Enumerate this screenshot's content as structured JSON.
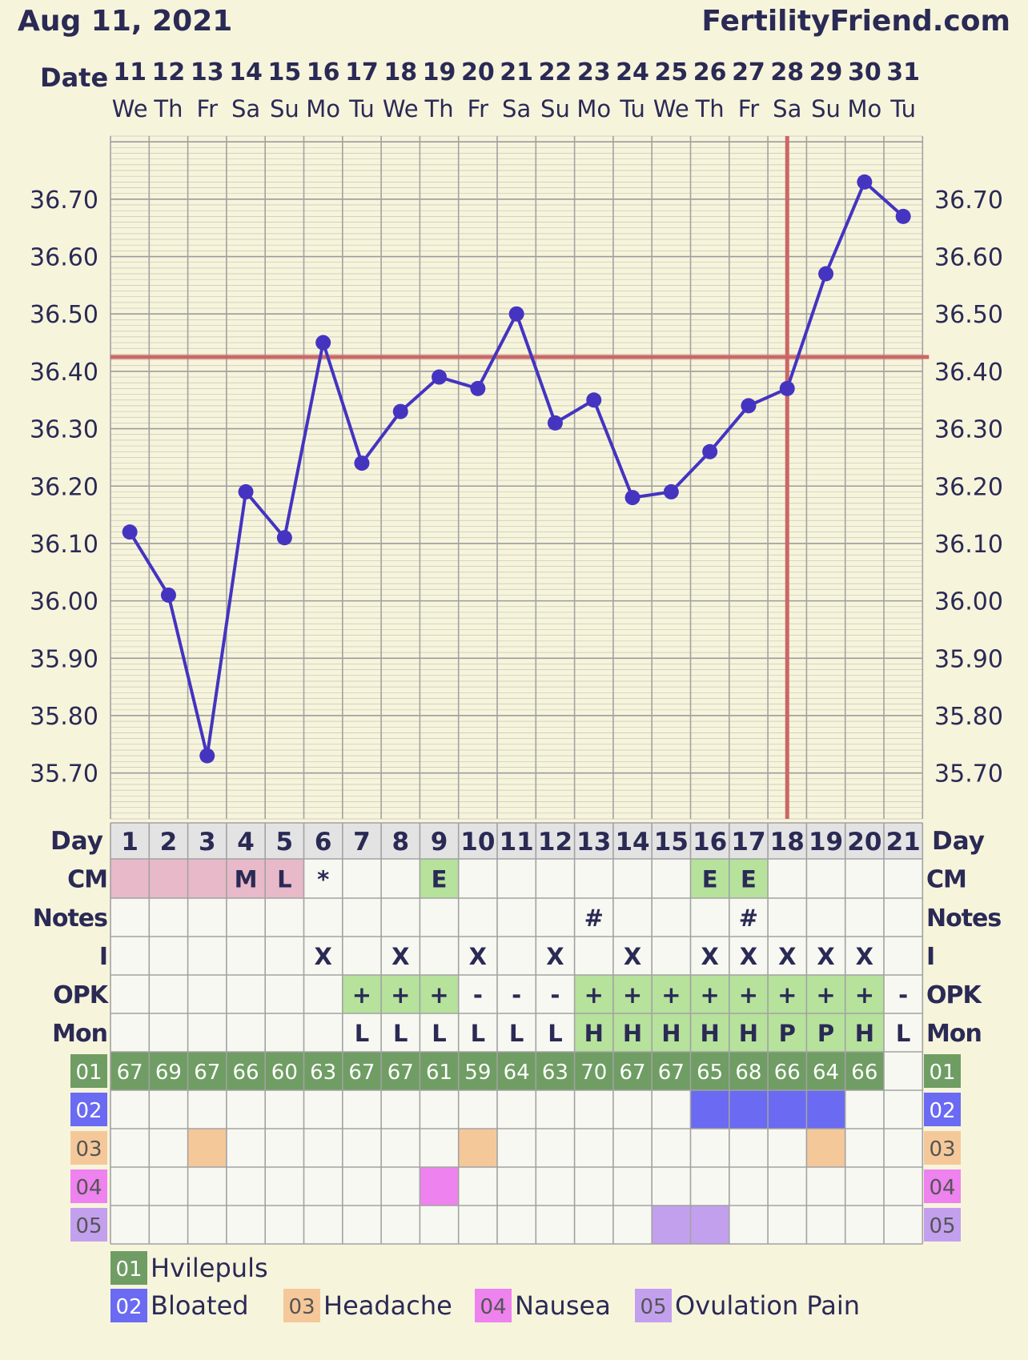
{
  "header": {
    "date": "Aug 11, 2021",
    "site": "FertilityFriend.com",
    "date_label": "Date"
  },
  "colors": {
    "background": "#f7f4dc",
    "grid": "#999999",
    "line": "#4434c0",
    "coverline": "#cc6666",
    "cell_fill": "#f8f8f2",
    "day_cell": "#e3e3e3",
    "menstruation": "#e8b9c8",
    "green_light": "#b6e29c",
    "green_dark": "#6f9d63",
    "bloated": "#6a6af2",
    "headache": "#f5c89a",
    "nausea": "#ee82ee",
    "ovulation_pain": "#c3a0ee"
  },
  "chart_data": {
    "type": "line",
    "dates": [
      "11",
      "12",
      "13",
      "14",
      "15",
      "16",
      "17",
      "18",
      "19",
      "20",
      "21",
      "22",
      "23",
      "24",
      "25",
      "26",
      "27",
      "28",
      "29",
      "30",
      "31"
    ],
    "weekdays": [
      "We",
      "Th",
      "Fr",
      "Sa",
      "Su",
      "Mo",
      "Tu",
      "We",
      "Th",
      "Fr",
      "Sa",
      "Su",
      "Mo",
      "Tu",
      "We",
      "Th",
      "Fr",
      "Sa",
      "Su",
      "Mo",
      "Tu"
    ],
    "cycle_days": [
      "1",
      "2",
      "3",
      "4",
      "5",
      "6",
      "7",
      "8",
      "9",
      "10",
      "11",
      "12",
      "13",
      "14",
      "15",
      "16",
      "17",
      "18",
      "19",
      "20",
      "21"
    ],
    "temperatures": [
      36.12,
      36.01,
      35.73,
      36.19,
      36.11,
      36.45,
      36.24,
      36.33,
      36.39,
      36.37,
      36.5,
      36.31,
      36.35,
      36.18,
      36.19,
      36.26,
      36.34,
      36.37,
      36.57,
      36.73,
      36.67
    ],
    "y_tick_labels": [
      "36.70",
      "36.60",
      "36.50",
      "36.40",
      "36.30",
      "36.20",
      "36.10",
      "36.00",
      "35.90",
      "35.80",
      "35.70"
    ],
    "y_ticks": [
      36.7,
      36.6,
      36.5,
      36.4,
      36.3,
      36.2,
      36.1,
      36.0,
      35.9,
      35.8,
      35.7
    ],
    "ylim": [
      35.62,
      36.81
    ],
    "coverline": 36.425,
    "ovulation_day_index": 17,
    "grid": true
  },
  "rows": {
    "day_label": "Day",
    "cm": {
      "label": "CM",
      "values": [
        "",
        "",
        "",
        "M",
        "L",
        "*",
        "",
        "",
        "E",
        "",
        "",
        "",
        "",
        "",
        "",
        "E",
        "E",
        "",
        "",
        "",
        ""
      ],
      "fills": [
        "menstruation",
        "menstruation",
        "menstruation",
        "menstruation",
        "menstruation",
        "",
        "",
        "",
        "green_light",
        "",
        "",
        "",
        "",
        "",
        "",
        "green_light",
        "green_light",
        "",
        "",
        "",
        ""
      ]
    },
    "notes": {
      "label": "Notes",
      "values": [
        "",
        "",
        "",
        "",
        "",
        "",
        "",
        "",
        "",
        "",
        "",
        "",
        "#",
        "",
        "",
        "",
        "#",
        "",
        "",
        "",
        ""
      ]
    },
    "intercourse": {
      "label": "I",
      "values": [
        "",
        "",
        "",
        "",
        "",
        "X",
        "",
        "X",
        "",
        "X",
        "",
        "X",
        "",
        "X",
        "",
        "X",
        "X",
        "X",
        "X",
        "X",
        ""
      ]
    },
    "opk": {
      "label": "OPK",
      "values": [
        "",
        "",
        "",
        "",
        "",
        "",
        "+",
        "+",
        "+",
        "-",
        "-",
        "-",
        "+",
        "+",
        "+",
        "+",
        "+",
        "+",
        "+",
        "+",
        "-"
      ],
      "fills": [
        "",
        "",
        "",
        "",
        "",
        "",
        "green_light",
        "green_light",
        "green_light",
        "",
        "",
        "",
        "green_light",
        "green_light",
        "green_light",
        "green_light",
        "green_light",
        "green_light",
        "green_light",
        "green_light",
        ""
      ]
    },
    "monitor": {
      "label": "Mon",
      "values": [
        "",
        "",
        "",
        "",
        "",
        "",
        "L",
        "L",
        "L",
        "L",
        "L",
        "L",
        "H",
        "H",
        "H",
        "H",
        "H",
        "P",
        "P",
        "H",
        "L"
      ],
      "fills": [
        "",
        "",
        "",
        "",
        "",
        "",
        "",
        "",
        "",
        "",
        "",
        "",
        "green_light",
        "green_light",
        "green_light",
        "green_light",
        "green_light",
        "green_light",
        "green_light",
        "green_light",
        ""
      ]
    },
    "custom": [
      {
        "code": "01",
        "color": "green_dark",
        "values": [
          "67",
          "69",
          "67",
          "66",
          "60",
          "63",
          "67",
          "67",
          "61",
          "59",
          "64",
          "63",
          "70",
          "67",
          "67",
          "65",
          "68",
          "66",
          "64",
          "66",
          ""
        ],
        "filled": [
          1,
          1,
          1,
          1,
          1,
          1,
          1,
          1,
          1,
          1,
          1,
          1,
          1,
          1,
          1,
          1,
          1,
          1,
          1,
          1,
          0
        ]
      },
      {
        "code": "02",
        "color": "bloated",
        "values": [],
        "filled": [
          0,
          0,
          0,
          0,
          0,
          0,
          0,
          0,
          0,
          0,
          0,
          0,
          0,
          0,
          0,
          1,
          1,
          1,
          1,
          0,
          0
        ]
      },
      {
        "code": "03",
        "color": "headache",
        "values": [],
        "filled": [
          0,
          0,
          1,
          0,
          0,
          0,
          0,
          0,
          0,
          1,
          0,
          0,
          0,
          0,
          0,
          0,
          0,
          0,
          1,
          0,
          0
        ]
      },
      {
        "code": "04",
        "color": "nausea",
        "values": [],
        "filled": [
          0,
          0,
          0,
          0,
          0,
          0,
          0,
          0,
          1,
          0,
          0,
          0,
          0,
          0,
          0,
          0,
          0,
          0,
          0,
          0,
          0
        ]
      },
      {
        "code": "05",
        "color": "ovulation_pain",
        "values": [],
        "filled": [
          0,
          0,
          0,
          0,
          0,
          0,
          0,
          0,
          0,
          0,
          0,
          0,
          0,
          0,
          1,
          1,
          0,
          0,
          0,
          0,
          0
        ]
      }
    ]
  },
  "legend": [
    {
      "code": "01",
      "label": "Hvilepuls",
      "color": "green_dark"
    },
    {
      "code": "02",
      "label": "Bloated",
      "color": "bloated"
    },
    {
      "code": "03",
      "label": "Headache",
      "color": "headache"
    },
    {
      "code": "04",
      "label": "Nausea",
      "color": "nausea"
    },
    {
      "code": "05",
      "label": "Ovulation Pain",
      "color": "ovulation_pain"
    }
  ]
}
